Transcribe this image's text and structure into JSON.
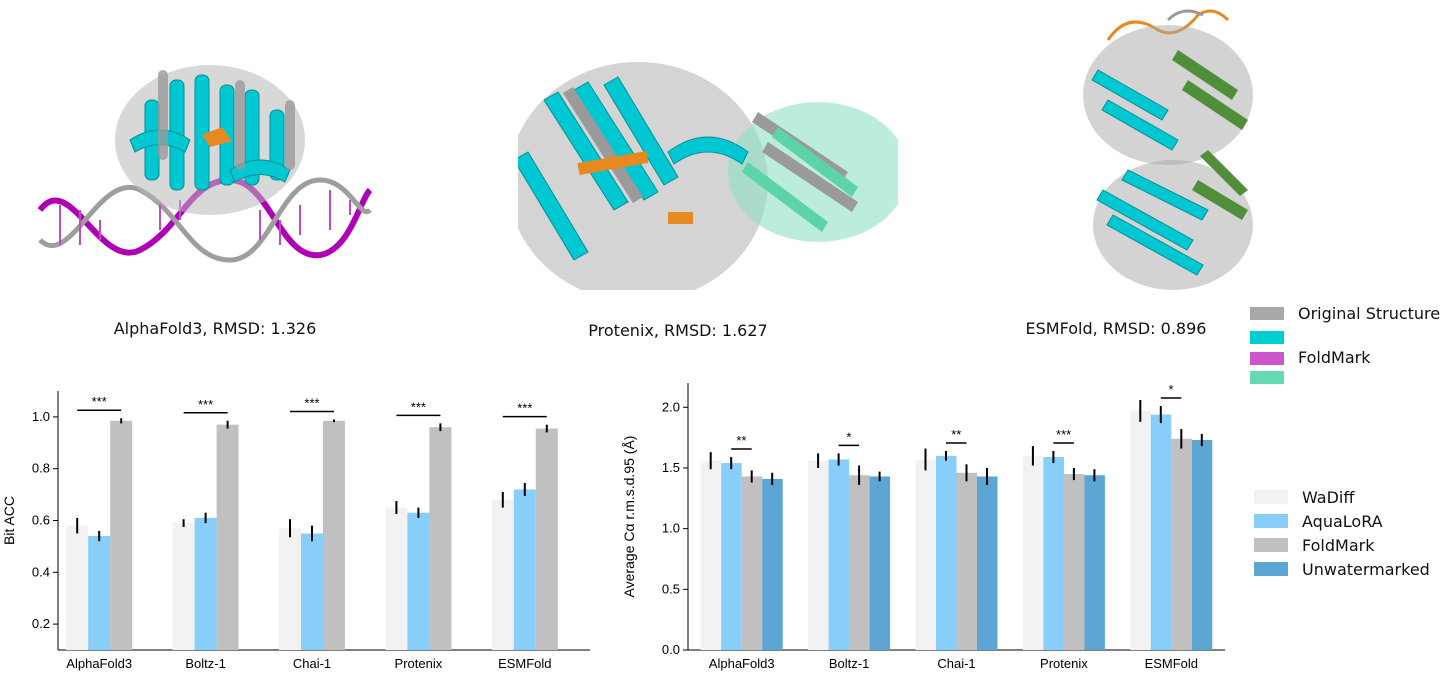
{
  "structures": [
    {
      "caption": "AlphaFold3, RMSD: 1.326"
    },
    {
      "caption": "Protenix, RMSD: 1.627"
    },
    {
      "caption": "ESMFold, RMSD: 0.896"
    }
  ],
  "structure_legend": [
    {
      "label": "Original Structure",
      "color": "#a8a8a8"
    },
    {
      "label": "",
      "color": "#00ced1"
    },
    {
      "label": "FoldMark",
      "color": "#cc44cc"
    },
    {
      "label": "",
      "color": "#66d9b3"
    }
  ],
  "colors": {
    "WaDiff": "#f2f2f2",
    "AquaLoRA": "#87cefa",
    "FoldMark": "#c0c0c0",
    "Unwatermarked": "#5da5d2",
    "cyan": "#00c8d2",
    "magenta": "#b000b5",
    "gray": "#a8a8a8",
    "orange": "#e68a20",
    "green": "#4f8f3a",
    "mint": "#7adcb8"
  },
  "chart_data": [
    {
      "type": "bar",
      "ylabel": "Bit ACC",
      "ylim": [
        0.4,
        1.0
      ],
      "yticks": [
        "0.2",
        "0.4",
        "0.6",
        "0.8",
        "1.0"
      ],
      "categories": [
        "AlphaFold3",
        "Boltz-1",
        "Chai-1",
        "Protenix",
        "ESMFold"
      ],
      "series": [
        {
          "name": "WaDiff",
          "values": [
            0.58,
            0.59,
            0.57,
            0.65,
            0.68
          ],
          "err": [
            0.03,
            0.015,
            0.035,
            0.025,
            0.03
          ]
        },
        {
          "name": "AquaLoRA",
          "values": [
            0.54,
            0.61,
            0.55,
            0.63,
            0.72
          ],
          "err": [
            0.02,
            0.02,
            0.03,
            0.02,
            0.025
          ]
        },
        {
          "name": "FoldMark",
          "values": [
            0.985,
            0.97,
            0.985,
            0.96,
            0.955
          ],
          "err": [
            0.01,
            0.015,
            0.005,
            0.015,
            0.015
          ]
        }
      ],
      "significance": [
        "***",
        "***",
        "***",
        "***",
        "***"
      ]
    },
    {
      "type": "bar",
      "ylabel": "Average Cα r.m.s.d.95 (Å)",
      "ylim": [
        0.0,
        2.2
      ],
      "yticks": [
        "0.0",
        "0.5",
        "1.0",
        "1.5",
        "2.0"
      ],
      "categories": [
        "AlphaFold3",
        "Boltz-1",
        "Chai-1",
        "Protenix",
        "ESMFold"
      ],
      "series": [
        {
          "name": "WaDiff",
          "values": [
            1.56,
            1.56,
            1.57,
            1.6,
            1.97
          ],
          "err": [
            0.07,
            0.06,
            0.09,
            0.08,
            0.09
          ]
        },
        {
          "name": "AquaLoRA",
          "values": [
            1.54,
            1.57,
            1.6,
            1.59,
            1.94
          ],
          "err": [
            0.05,
            0.05,
            0.04,
            0.05,
            0.07
          ]
        },
        {
          "name": "FoldMark",
          "values": [
            1.43,
            1.44,
            1.46,
            1.45,
            1.74
          ],
          "err": [
            0.05,
            0.08,
            0.07,
            0.05,
            0.08
          ]
        },
        {
          "name": "Unwatermarked",
          "values": [
            1.41,
            1.43,
            1.43,
            1.44,
            1.73
          ],
          "err": [
            0.05,
            0.04,
            0.07,
            0.05,
            0.05
          ]
        }
      ],
      "significance": [
        "**",
        "*",
        "**",
        "***",
        "*"
      ]
    }
  ],
  "bar_legend": [
    "WaDiff",
    "AquaLoRA",
    "FoldMark",
    "Unwatermarked"
  ]
}
